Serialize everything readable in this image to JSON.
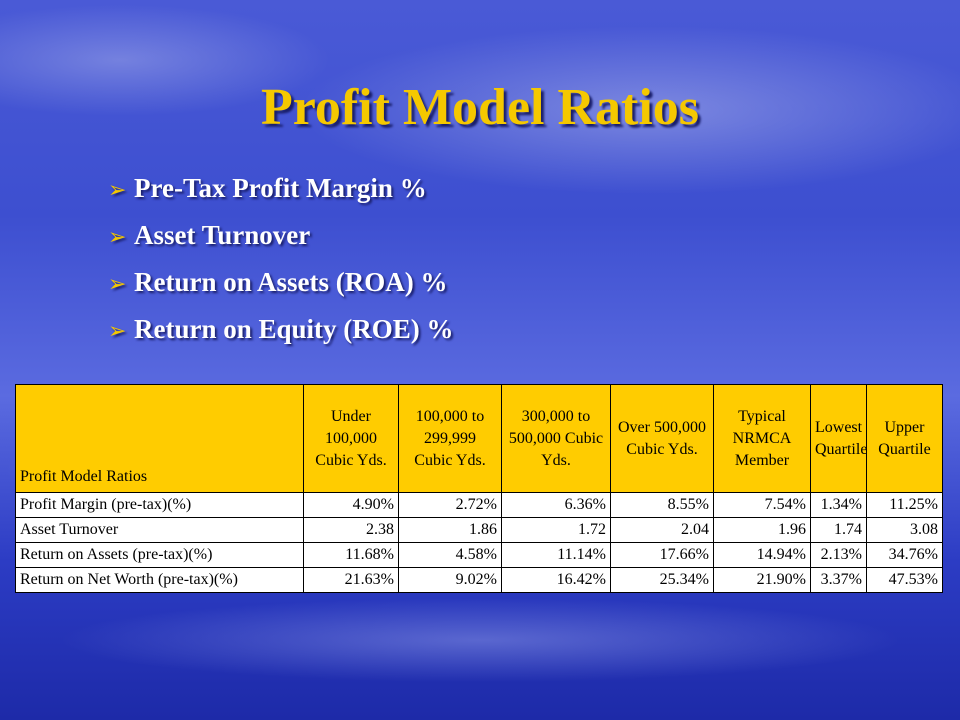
{
  "slide": {
    "title": "Profit Model Ratios",
    "bullets": [
      "Pre-Tax Profit Margin %",
      "Asset Turnover",
      "Return on Assets (ROA) %",
      "Return on Equity (ROE) %"
    ]
  },
  "table": {
    "row_header": "Profit Model Ratios",
    "columns": [
      "Under 100,000 Cubic Yds.",
      "100,000 to 299,999 Cubic Yds.",
      "300,000 to 500,000 Cubic Yds.",
      "Over 500,000 Cubic Yds.",
      "Typical NRMCA Member",
      "Lowest Quartile",
      "Upper Quartile"
    ],
    "rows": [
      {
        "label": "Profit Margin (pre-tax)(%)",
        "values": [
          "4.90%",
          "2.72%",
          "6.36%",
          "8.55%",
          "7.54%",
          "1.34%",
          "11.25%"
        ]
      },
      {
        "label": "Asset Turnover",
        "values": [
          "2.38",
          "1.86",
          "1.72",
          "2.04",
          "1.96",
          "1.74",
          "3.08"
        ]
      },
      {
        "label": "Return on Assets (pre-tax)(%)",
        "values": [
          "11.68%",
          "4.58%",
          "11.14%",
          "17.66%",
          "14.94%",
          "2.13%",
          "34.76%"
        ]
      },
      {
        "label": "Return on Net Worth (pre-tax)(%)",
        "values": [
          "21.63%",
          "9.02%",
          "16.42%",
          "25.34%",
          "21.90%",
          "3.37%",
          "47.53%"
        ]
      }
    ]
  },
  "colors": {
    "title": "#f5c800",
    "header_fill": "#ffcc00",
    "bullet_arrow": "#f5c800"
  }
}
